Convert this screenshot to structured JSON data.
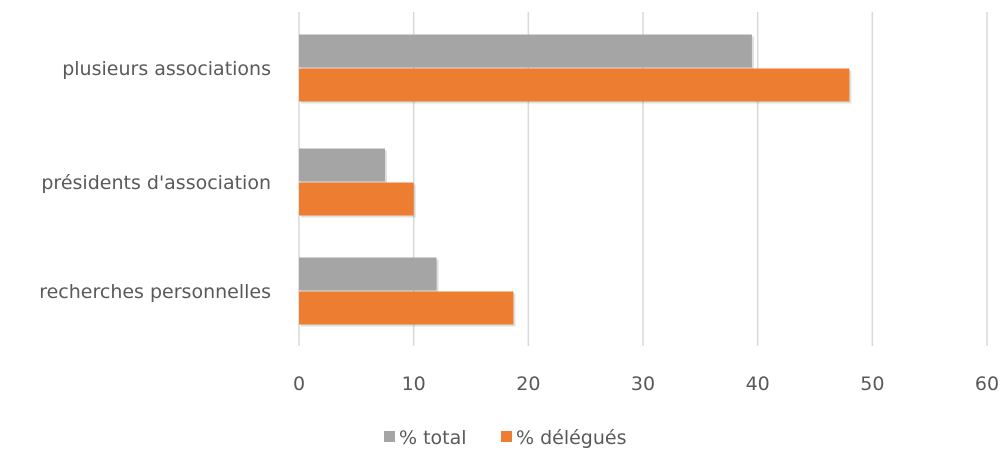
{
  "chart_data": {
    "type": "bar",
    "orientation": "horizontal",
    "categories": [
      "plusieurs associations",
      "présidents d'association",
      "recherches personnelles"
    ],
    "series": [
      {
        "name": "% total",
        "values": [
          39.5,
          7.5,
          12
        ],
        "color": "#a5a5a5"
      },
      {
        "name": "% délégués",
        "values": [
          48,
          10,
          18.7
        ],
        "color": "#ed7d31"
      }
    ],
    "xlim": [
      0,
      60
    ],
    "xticks": [
      0,
      10,
      20,
      30,
      40,
      50,
      60
    ],
    "grid": true,
    "legend": "bottom",
    "title": "",
    "xlabel": "",
    "ylabel": ""
  }
}
